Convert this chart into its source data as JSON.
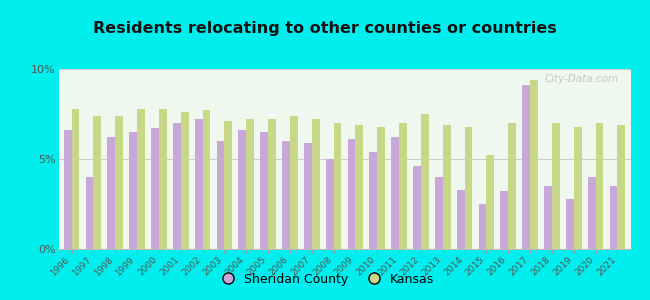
{
  "title": "Residents relocating to other counties or countries",
  "years": [
    1996,
    1997,
    1998,
    1999,
    2000,
    2001,
    2002,
    2003,
    2004,
    2005,
    2006,
    2007,
    2008,
    2009,
    2010,
    2011,
    2012,
    2013,
    2014,
    2015,
    2016,
    2017,
    2018,
    2019,
    2020,
    2021
  ],
  "sheridan": [
    6.6,
    4.0,
    6.2,
    6.5,
    6.7,
    7.0,
    7.2,
    6.0,
    6.6,
    6.5,
    6.0,
    5.9,
    5.0,
    6.1,
    5.4,
    6.2,
    4.6,
    4.0,
    3.3,
    2.5,
    3.2,
    9.1,
    3.5,
    2.8,
    4.0,
    3.5
  ],
  "kansas": [
    7.8,
    7.4,
    7.4,
    7.8,
    7.8,
    7.6,
    7.7,
    7.1,
    7.2,
    7.2,
    7.4,
    7.2,
    7.0,
    6.9,
    6.8,
    7.0,
    7.5,
    6.9,
    6.8,
    5.2,
    7.0,
    9.4,
    7.0,
    6.8,
    7.0,
    6.9
  ],
  "sheridan_color": "#c9a8d9",
  "kansas_color": "#c8d888",
  "background_color": "#eef8ee",
  "outer_background": "#00eeee",
  "ylim": [
    0,
    10
  ],
  "yticks": [
    0,
    5,
    10
  ],
  "ytick_labels": [
    "0%",
    "5%",
    "10%"
  ],
  "bar_width": 0.36,
  "watermark": "City-Data.com"
}
